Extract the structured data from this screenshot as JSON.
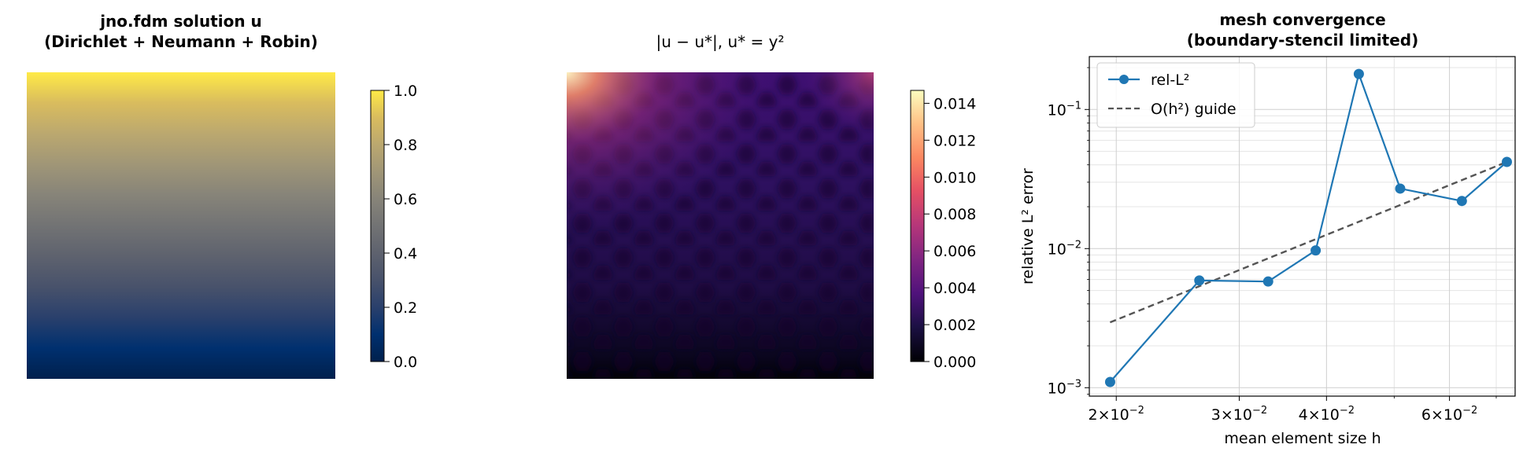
{
  "chart_data": [
    {
      "type": "heatmap",
      "title_line1": "jno.fdm solution  u",
      "title_line2": "(Dirichlet + Neumann + Robin)",
      "colormap": "cividis",
      "colorbar": {
        "min": 0.0,
        "max": 1.0,
        "ticks": [
          0.0,
          0.2,
          0.4,
          0.6,
          0.8,
          1.0
        ],
        "tick_labels": [
          "0.0",
          "0.2",
          "0.4",
          "0.6",
          "0.8",
          "1.0"
        ]
      }
    },
    {
      "type": "heatmap",
      "title": "|u − u*|,  u* = y²",
      "colormap": "magma",
      "colorbar": {
        "min": 0.0,
        "max": 0.0147,
        "ticks": [
          0.0,
          0.002,
          0.004,
          0.006,
          0.008,
          0.01,
          0.012,
          0.014
        ],
        "tick_labels": [
          "0.000",
          "0.002",
          "0.004",
          "0.006",
          "0.008",
          "0.010",
          "0.012",
          "0.014"
        ]
      }
    },
    {
      "type": "line",
      "title_line1": "mesh convergence",
      "title_line2": "(boundary-stencil limited)",
      "xlabel": "mean element size h",
      "ylabel": "relative L² error",
      "xscale": "log",
      "yscale": "log",
      "xlim": [
        0.0183,
        0.0745
      ],
      "ylim": [
        0.00087,
        0.24
      ],
      "grid": true,
      "legend_position": "top-left",
      "x_ticks": [
        {
          "value": 0.02,
          "base": "2",
          "exp": "−2"
        },
        {
          "value": 0.03,
          "base": "3",
          "exp": "−2"
        },
        {
          "value": 0.04,
          "base": "4",
          "exp": "−2"
        },
        {
          "value": 0.06,
          "base": "6",
          "exp": "−2"
        }
      ],
      "y_ticks": [
        {
          "value": 0.001,
          "exp": "−3"
        },
        {
          "value": 0.01,
          "exp": "−2"
        },
        {
          "value": 0.1,
          "exp": "−1"
        }
      ],
      "series": [
        {
          "name": "rel-L²",
          "color": "#1f77b4",
          "style": "solid-marker",
          "x": [
            0.0196,
            0.0263,
            0.033,
            0.0386,
            0.0445,
            0.051,
            0.0625,
            0.0725
          ],
          "y": [
            0.0011,
            0.0059,
            0.0058,
            0.0097,
            0.18,
            0.027,
            0.022,
            0.042
          ]
        },
        {
          "name": "O(h²) guide",
          "color": "#555555",
          "style": "dashed",
          "x": [
            0.0196,
            0.0725
          ],
          "y": [
            0.00295,
            0.042
          ]
        }
      ]
    }
  ]
}
